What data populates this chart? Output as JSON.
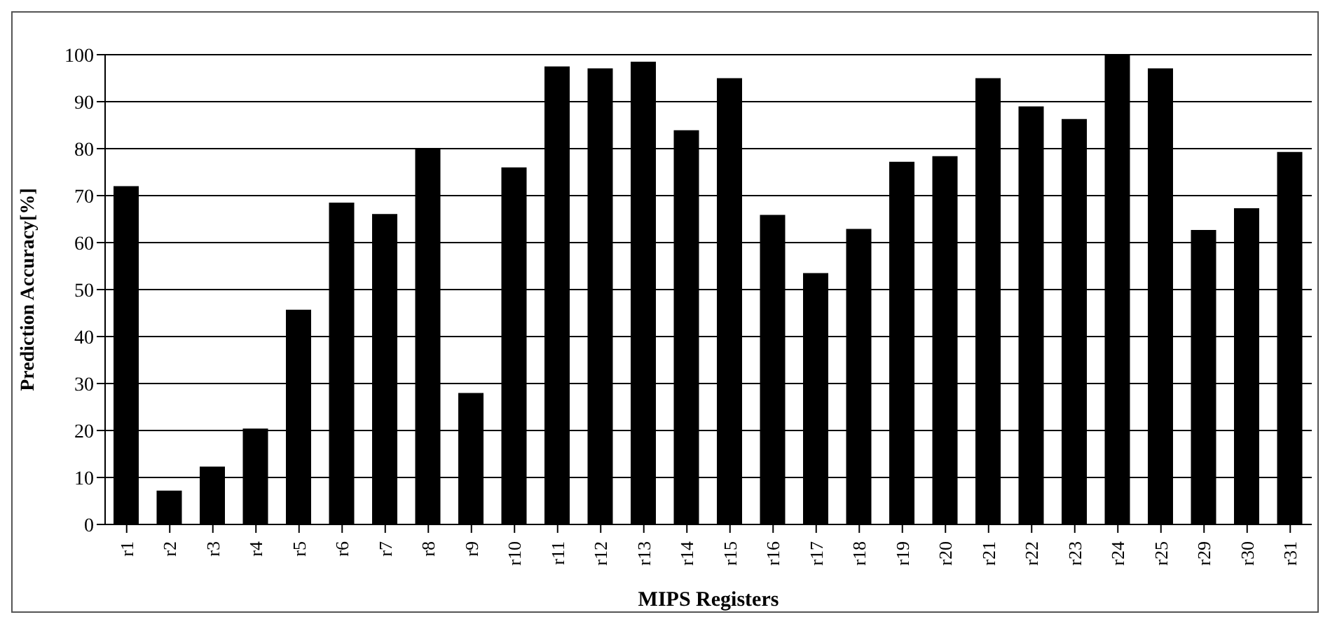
{
  "chart_data": {
    "type": "bar",
    "xlabel": "MIPS Registers",
    "ylabel": "Prediction Accuracy[%]",
    "categories": [
      "r1",
      "r2",
      "r3",
      "r4",
      "r5",
      "r6",
      "r7",
      "r8",
      "r9",
      "r10",
      "r11",
      "r12",
      "r13",
      "r14",
      "r15",
      "r16",
      "r17",
      "r18",
      "r19",
      "r20",
      "r21",
      "r22",
      "r23",
      "r24",
      "r25",
      "r29",
      "r30",
      "r31"
    ],
    "values": [
      72,
      7.2,
      12.3,
      20.4,
      45.7,
      68.5,
      66.1,
      80,
      28,
      76,
      97.5,
      97.1,
      98.5,
      83.9,
      95,
      65.9,
      53.5,
      62.9,
      77.2,
      78.4,
      95,
      89,
      86.3,
      100,
      97.1,
      62.7,
      67.3,
      79.3
    ],
    "color": "#000000",
    "ylim": [
      0,
      100
    ],
    "yticks": [
      0,
      10,
      20,
      30,
      40,
      50,
      60,
      70,
      80,
      90,
      100
    ],
    "grid": "y"
  }
}
